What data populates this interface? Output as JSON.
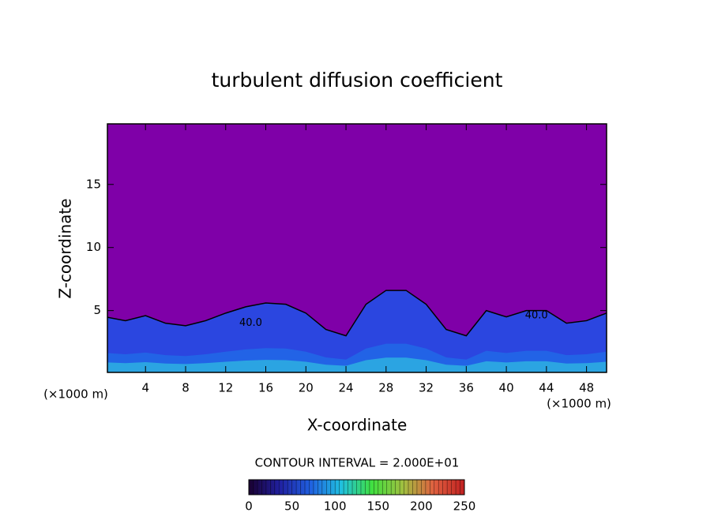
{
  "chart_data": {
    "type": "contour",
    "title": "turbulent diffusion coefficient",
    "x_label": "X-coordinate",
    "y_label": "Z-coordinate",
    "x_unit": "(×1000 m)",
    "y_unit": "(×1000 m)",
    "xlim": [
      0.2,
      50
    ],
    "ylim": [
      0.1,
      19.8
    ],
    "xticks": [
      4,
      8,
      12,
      16,
      20,
      24,
      28,
      32,
      36,
      40,
      44,
      48
    ],
    "yticks": [
      5,
      10,
      15
    ],
    "background_color": "#7f00a8",
    "field_color": "#2b46e0",
    "x": [
      0,
      2,
      4,
      6,
      8,
      10,
      12,
      14,
      16,
      18,
      20,
      22,
      24,
      26,
      28,
      30,
      32,
      34,
      36,
      38,
      40,
      42,
      44,
      46,
      48,
      50
    ],
    "values": [
      4.5,
      4.2,
      4.6,
      4.0,
      3.8,
      4.2,
      4.8,
      5.3,
      5.6,
      5.5,
      4.8,
      3.5,
      3.0,
      5.5,
      6.6,
      6.6,
      5.5,
      3.5,
      3.0,
      5.0,
      4.5,
      5.0,
      5.0,
      4.0,
      4.2,
      4.8
    ],
    "contour_labels": [
      {
        "text": "40.0",
        "x": 14.5,
        "y": 4.0
      },
      {
        "text": "40.0",
        "x": 43,
        "y": 4.6
      }
    ],
    "contour_interval": "CONTOUR INTERVAL = 2.000E+01",
    "colorbar": {
      "lim": [
        0,
        250
      ],
      "ticks": [
        0,
        50,
        100,
        150,
        200,
        250
      ],
      "colors": [
        "#1a0030",
        "#2020a0",
        "#2060e0",
        "#20c0e0",
        "#40e040",
        "#a0c040",
        "#e06040",
        "#c02020"
      ]
    }
  }
}
